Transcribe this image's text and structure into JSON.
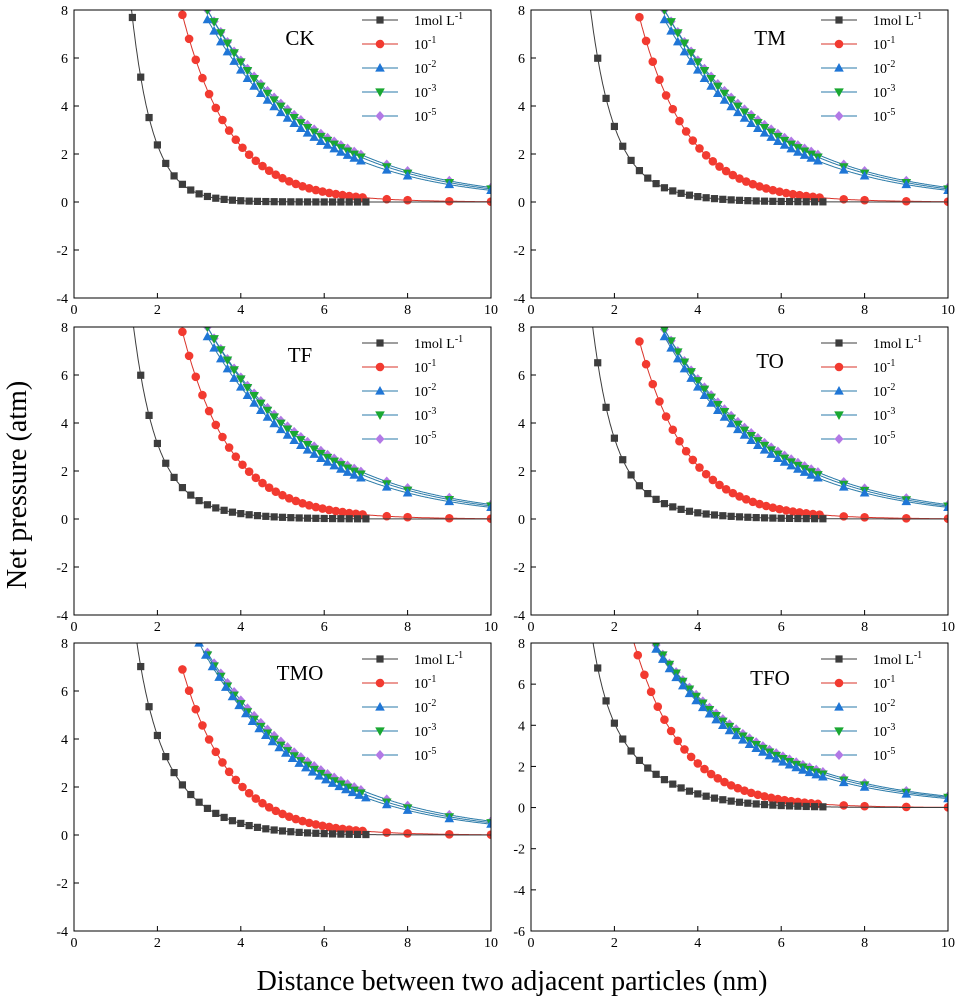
{
  "figure": {
    "ylabel": "Net pressure (atm)",
    "xlabel": "Distance between two adjacent particles (nm)"
  },
  "colors": {
    "series": [
      "#3d3d3d",
      "#f23a30",
      "#1f76d6",
      "#1aa832",
      "#b279e6"
    ],
    "lines": [
      "#3d3d3d",
      "#d9332a",
      "#2a7aa8",
      "#2a7aa8",
      "#2a7aa8"
    ]
  },
  "series_meta": [
    {
      "name": "1mol L-1",
      "legend_base": "1mol L",
      "legend_sup": "-1",
      "marker": "square"
    },
    {
      "name": "10-1",
      "legend_base": "10",
      "legend_sup": "-1",
      "marker": "circle"
    },
    {
      "name": "10-2",
      "legend_base": "10",
      "legend_sup": "-2",
      "marker": "triangle-up"
    },
    {
      "name": "10-3",
      "legend_base": "10",
      "legend_sup": "-3",
      "marker": "triangle-down"
    },
    {
      "name": "10-5",
      "legend_base": "10",
      "legend_sup": "-5",
      "marker": "diamond"
    }
  ],
  "chart_data": [
    {
      "type": "line",
      "title": "CK",
      "xlim": [
        0,
        10
      ],
      "ylim": [
        -4,
        8
      ],
      "xticks": [
        "0",
        "2",
        "4",
        "6",
        "8",
        "10"
      ],
      "yticks": [
        "-4",
        "-2",
        "0",
        "2",
        "4",
        "6",
        "8"
      ],
      "curves": {
        "s0": {
          "d0": 1.25,
          "A": 10.3,
          "a": 0.7,
          "B": 11.5,
          "b": 0.6,
          "c": 2.15
        },
        "s1": {
          "d0": 2.6,
          "A": 7.8,
          "k": 0.86
        },
        "s2": {
          "d0": 3.2,
          "A": 7.6,
          "k": 0.405
        },
        "s3": {
          "d0": 3.2,
          "A": 8.0,
          "k": 0.395
        },
        "s4": {
          "d0": 3.2,
          "A": 8.0,
          "k": 0.38
        }
      }
    },
    {
      "type": "line",
      "title": "TM",
      "xlim": [
        0,
        10
      ],
      "ylim": [
        -4,
        8
      ],
      "xticks": [
        "0",
        "2",
        "4",
        "6",
        "8",
        "10"
      ],
      "yticks": [
        "-4",
        "-2",
        "0",
        "2",
        "4",
        "6",
        "8"
      ],
      "curves": {
        "s0": {
          "d0": 1.3,
          "A": 10.0,
          "a": 0.8,
          "B": 11.2,
          "b": 0.57,
          "c": 2.25
        },
        "s1": {
          "d0": 2.6,
          "A": 7.7,
          "k": 0.86
        },
        "s2": {
          "d0": 3.2,
          "A": 7.6,
          "k": 0.405
        },
        "s3": {
          "d0": 3.2,
          "A": 8.0,
          "k": 0.395
        },
        "s4": {
          "d0": 3.2,
          "A": 8.0,
          "k": 0.38
        }
      }
    },
    {
      "type": "line",
      "title": "TF",
      "xlim": [
        0,
        10
      ],
      "ylim": [
        -4,
        8
      ],
      "xticks": [
        "0",
        "2",
        "4",
        "6",
        "8",
        "10"
      ],
      "yticks": [
        "-4",
        "-2",
        "0",
        "2",
        "4",
        "6",
        "8"
      ],
      "curves": {
        "s0": {
          "d0": 1.3,
          "A": 10.0,
          "a": 0.8,
          "B": 11.2,
          "b": 0.57,
          "c": 2.25
        },
        "s1": {
          "d0": 2.6,
          "A": 7.8,
          "k": 0.86
        },
        "s2": {
          "d0": 3.2,
          "A": 7.6,
          "k": 0.405
        },
        "s3": {
          "d0": 3.2,
          "A": 8.0,
          "k": 0.395
        },
        "s4": {
          "d0": 3.2,
          "A": 8.0,
          "k": 0.38
        }
      }
    },
    {
      "type": "line",
      "title": "TO",
      "xlim": [
        0,
        10
      ],
      "ylim": [
        -4,
        8
      ],
      "xticks": [
        "0",
        "2",
        "4",
        "6",
        "8",
        "10"
      ],
      "yticks": [
        "-4",
        "-2",
        "0",
        "2",
        "4",
        "6",
        "8"
      ],
      "curves": {
        "s0": {
          "d0": 1.3,
          "A": 11.0,
          "a": 0.85,
          "B": 13.4,
          "b": 0.6,
          "c": 2.0
        },
        "s1": {
          "d0": 2.6,
          "A": 7.4,
          "k": 0.86
        },
        "s2": {
          "d0": 3.2,
          "A": 7.6,
          "k": 0.405
        },
        "s3": {
          "d0": 3.2,
          "A": 7.9,
          "k": 0.395
        },
        "s4": {
          "d0": 3.2,
          "A": 7.9,
          "k": 0.38
        }
      }
    },
    {
      "type": "line",
      "title": "TMO",
      "xlim": [
        0,
        10
      ],
      "ylim": [
        -4,
        8
      ],
      "xticks": [
        "0",
        "2",
        "4",
        "6",
        "8",
        "10"
      ],
      "yticks": [
        "-4",
        "-2",
        "0",
        "2",
        "4",
        "6",
        "8"
      ],
      "curves": {
        "s0": {
          "d0": 1.3,
          "A": 11.0,
          "a": 0.9,
          "B": 10.5,
          "b": 0.5,
          "c": 2.0
        },
        "s1": {
          "d0": 2.6,
          "A": 6.9,
          "k": 0.86
        },
        "s2": {
          "d0": 3.0,
          "A": 8.0,
          "k": 0.41
        },
        "s3": {
          "d0": 3.2,
          "A": 7.5,
          "k": 0.395
        },
        "s4": {
          "d0": 3.2,
          "A": 7.6,
          "k": 0.38
        }
      }
    },
    {
      "type": "line",
      "title": "TFO",
      "xlim": [
        0,
        10
      ],
      "ylim": [
        -6,
        8
      ],
      "xticks": [
        "0",
        "2",
        "4",
        "6",
        "8",
        "10"
      ],
      "yticks": [
        "-6",
        "-4",
        "-2",
        "0",
        "2",
        "4",
        "6",
        "8"
      ],
      "curves": {
        "s0": {
          "d0": 1.3,
          "A": 11.0,
          "a": 1.0,
          "B": 15.5,
          "b": 0.47,
          "c": 1.8
        },
        "s1": {
          "d0": 2.4,
          "A": 8.5,
          "k": 0.86
        },
        "s2": {
          "d0": 3.0,
          "A": 7.7,
          "k": 0.41
        },
        "s3": {
          "d0": 3.0,
          "A": 7.9,
          "k": 0.395
        },
        "s4": {
          "d0": 3.0,
          "A": 7.9,
          "k": 0.38
        }
      }
    }
  ]
}
